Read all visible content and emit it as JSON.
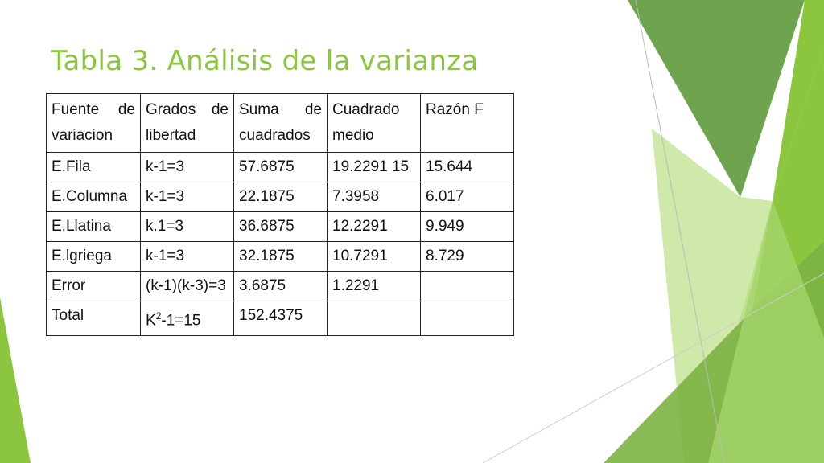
{
  "slide": {
    "title": "Tabla 3. Análisis de la varianza"
  },
  "theme": {
    "accent": "#8cc63f",
    "dark_green": "#5d9a3a",
    "light_green": "#c6e59a"
  },
  "table": {
    "headers": [
      "Fuente de variacion",
      "Grados de libertad",
      "Suma de cuadrados",
      "Cuadrado medio",
      "Razón F"
    ],
    "rows": [
      [
        "E.Fila",
        "k-1=3",
        "57.6875",
        "19.2291 15",
        "15.644"
      ],
      [
        "E.Columna",
        "k-1=3",
        "22.1875",
        "7.3958",
        "6.017"
      ],
      [
        "E.Llatina",
        "k.1=3",
        "36.6875",
        "12.2291",
        "9.949"
      ],
      [
        "E.lgriega",
        "k-1=3",
        "32.1875",
        "10.7291",
        "8.729"
      ],
      [
        "Error",
        "(k-1)(k-3)=3",
        "3.6875",
        "1.2291",
        ""
      ],
      [
        "Total",
        "",
        "152.4375",
        "",
        ""
      ]
    ],
    "total_df": {
      "base": "K",
      "exponent": "2",
      "rest": "-1=15"
    }
  }
}
